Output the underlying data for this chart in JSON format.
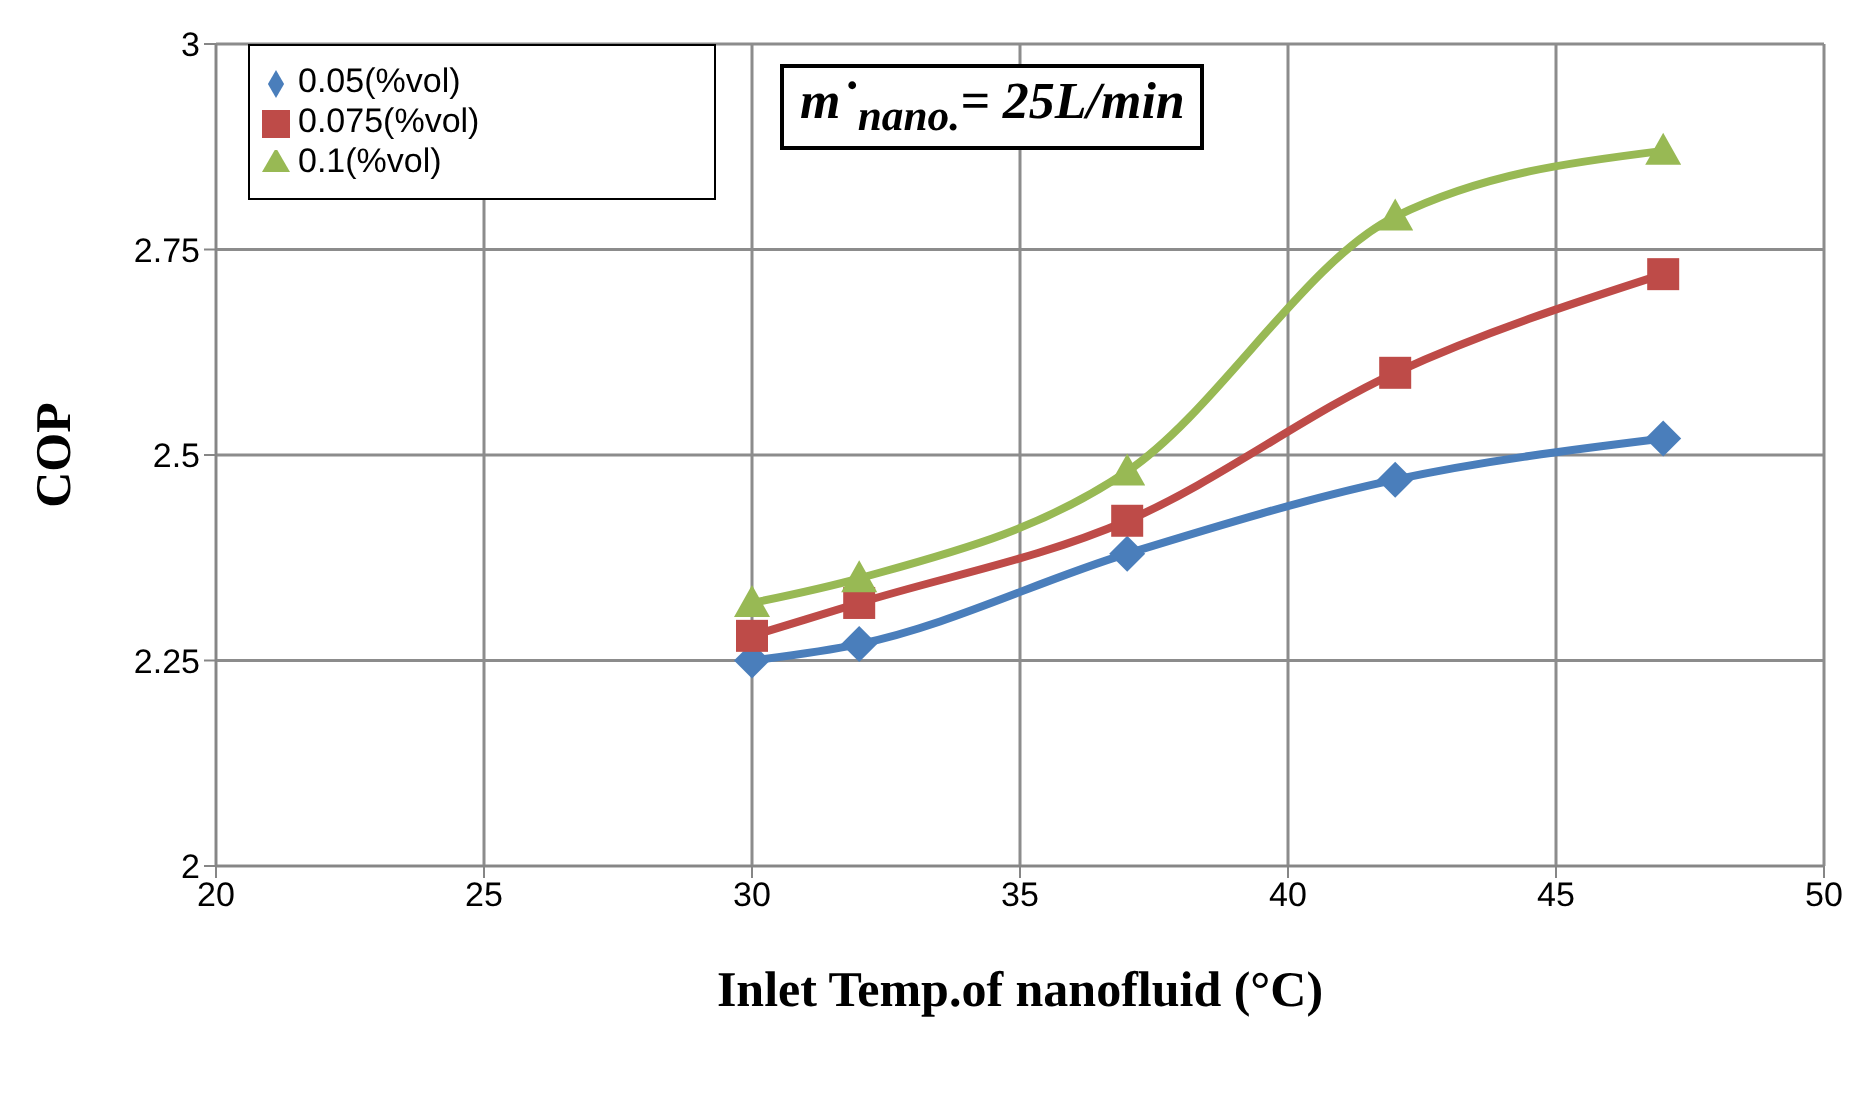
{
  "chart_data": {
    "type": "line",
    "xlabel": "Inlet Temp.of nanofluid (°C)",
    "ylabel": "COP",
    "annotations": [
      "m˙$_{nano.}$= 25L/min"
    ],
    "x": [
      30,
      32,
      37,
      42,
      47
    ],
    "series": [
      {
        "name": "0.05(%vol)",
        "color": "#4a7ebb",
        "marker": "diamond",
        "values": [
          2.25,
          2.27,
          2.38,
          2.47,
          2.52
        ]
      },
      {
        "name": "0.075(%vol)",
        "color": "#be4b48",
        "marker": "square",
        "values": [
          2.28,
          2.32,
          2.42,
          2.6,
          2.72
        ]
      },
      {
        "name": "0.1(%vol)",
        "color": "#98b954",
        "marker": "triangle",
        "values": [
          2.32,
          2.35,
          2.48,
          2.79,
          2.87
        ]
      }
    ],
    "xlim": [
      20,
      50
    ],
    "xticks": [
      20,
      25,
      30,
      35,
      40,
      45,
      50
    ],
    "ylim": [
      2,
      3
    ],
    "yticks": [
      2,
      {
        "value": 2.25,
        "label": "2.25"
      },
      {
        "value": 2.5,
        "label": "2.5"
      },
      {
        "value": 2.75,
        "label": "2.75"
      },
      3
    ],
    "grid": true,
    "legend": "top left",
    "line_style": "solid"
  }
}
